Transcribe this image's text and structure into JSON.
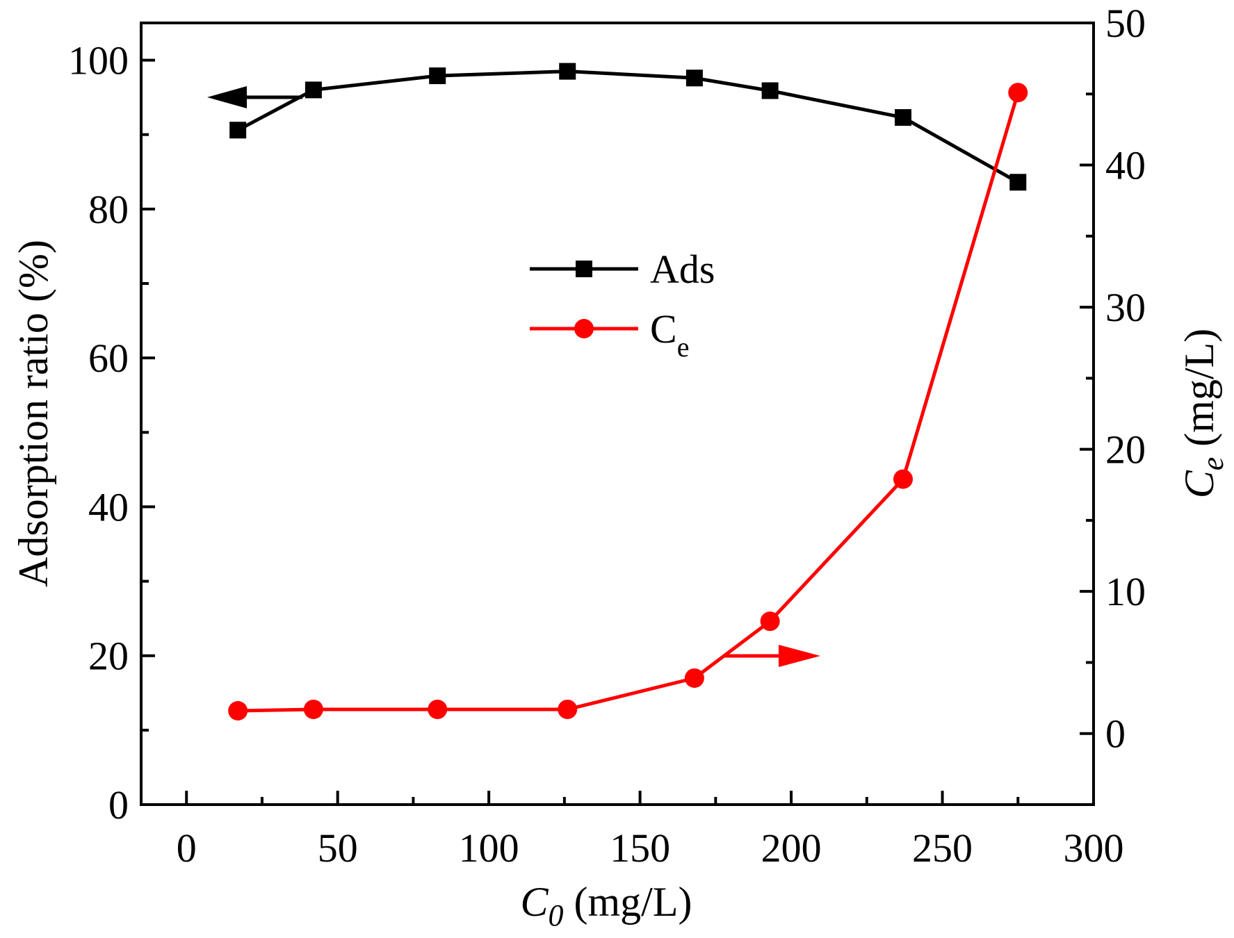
{
  "chart_data": {
    "type": "line",
    "xlabel": {
      "var": "C",
      "sub": "0",
      "unit": " (mg/L)"
    },
    "ylabel_left": "Adsorption ratio (%)",
    "ylabel_right": {
      "var": "C",
      "sub": "e",
      "unit": " (mg/L)"
    },
    "xlim": [
      -15,
      300
    ],
    "ylim_left": [
      0,
      105
    ],
    "ylim_right": [
      -5,
      50
    ],
    "x_ticks": [
      0,
      50,
      100,
      150,
      200,
      250,
      300
    ],
    "x_tick_labels": [
      "0",
      "50",
      "100",
      "150",
      "200",
      "250",
      "300"
    ],
    "y_left_ticks": [
      0,
      20,
      40,
      60,
      80,
      100
    ],
    "y_left_tick_labels": [
      "0",
      "20",
      "40",
      "60",
      "80",
      "100"
    ],
    "y_right_ticks": [
      0,
      10,
      20,
      30,
      40,
      50
    ],
    "y_right_tick_labels": [
      "0",
      "10",
      "20",
      "30",
      "40",
      "50"
    ],
    "x": [
      17,
      42,
      83,
      126,
      168,
      193,
      237,
      275
    ],
    "series": [
      {
        "name": "Ads",
        "axis": "left",
        "marker": "square",
        "color": "#000000",
        "x": [
          17,
          42,
          83,
          126,
          168,
          193,
          237,
          275
        ],
        "values": [
          90.6,
          96.0,
          97.9,
          98.5,
          97.6,
          95.9,
          92.3,
          83.6
        ]
      },
      {
        "name": "Ce",
        "legend_base": "C",
        "legend_sub": "e",
        "axis": "right",
        "marker": "circle",
        "color": "#ff0000",
        "x": [
          17,
          42,
          83,
          126,
          168,
          193,
          237,
          275
        ],
        "values": [
          1.6,
          1.7,
          1.7,
          1.7,
          3.9,
          7.9,
          17.9,
          45.1
        ]
      }
    ],
    "annotations": [
      {
        "type": "arrow",
        "direction": "left",
        "points_to_axis": "left",
        "color": "#000000"
      },
      {
        "type": "arrow",
        "direction": "right",
        "points_to_axis": "right",
        "color": "#ff0000"
      }
    ],
    "legend_position": "center-top",
    "grid": false
  }
}
